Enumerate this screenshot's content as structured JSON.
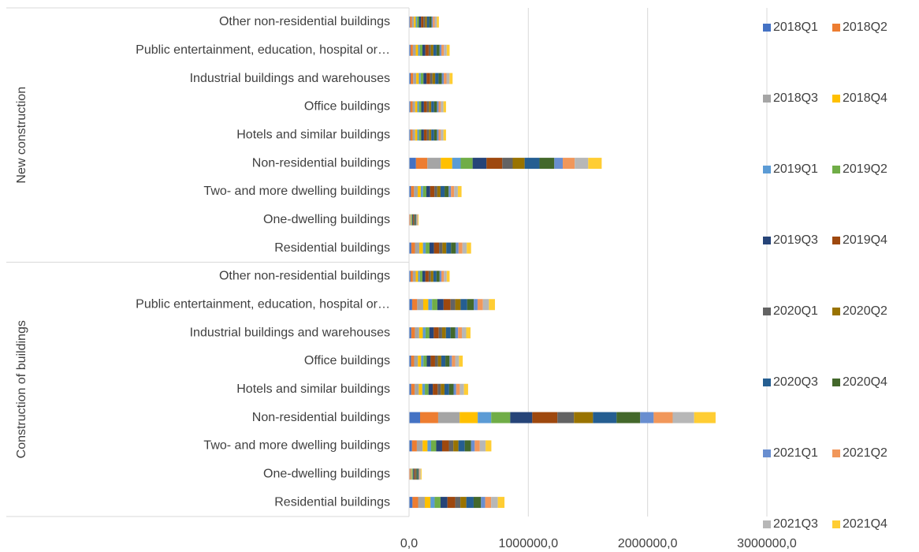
{
  "chart_data": {
    "type": "stacked_barh",
    "category_groups": [
      {
        "name": "New construction",
        "categories": [
          "Other non-residential buildings",
          "Public entertainment, education, hospital or…",
          "Industrial buildings and warehouses",
          "Office buildings",
          "Hotels and similar buildings",
          "Non-residential buildings",
          "Two- and more dwelling buildings",
          "One-dwelling buildings",
          "Residential buildings"
        ]
      },
      {
        "name": "Construction of buildings",
        "categories": [
          "Other non-residential buildings",
          "Public entertainment, education, hospital or…",
          "Industrial buildings and warehouses",
          "Office buildings",
          "Hotels and similar buildings",
          "Non-residential buildings",
          "Two- and more dwelling buildings",
          "One-dwelling buildings",
          "Residential buildings"
        ]
      }
    ],
    "series": [
      {
        "name": "2018Q1",
        "color": "#4472c4",
        "values": [
          9000,
          12240,
          13140,
          11160,
          11160,
          58140,
          15840,
          2880,
          18720,
          12240,
          25920,
          18540,
          16200,
          17820,
          92520,
          24840,
          3780,
          28800
        ]
      },
      {
        "name": "2018Q2",
        "color": "#ed7d31",
        "values": [
          14750,
          20060,
          21535,
          18290,
          18290,
          95285,
          25960,
          4720,
          30680,
          20060,
          42480,
          30385,
          26550,
          29205,
          151630,
          40710,
          6195,
          47200
        ]
      },
      {
        "name": "2018Q3",
        "color": "#a5a5a5",
        "values": [
          17500,
          23800,
          25550,
          21700,
          21700,
          113050,
          30800,
          5600,
          36400,
          23800,
          50400,
          36050,
          31500,
          34650,
          179900,
          48300,
          7350,
          56000
        ]
      },
      {
        "name": "2018Q4",
        "color": "#ffc000",
        "values": [
          14750,
          20060,
          21535,
          18290,
          18290,
          95285,
          25960,
          4720,
          30680,
          20060,
          42480,
          30385,
          26550,
          29205,
          151630,
          40710,
          6195,
          47200
        ]
      },
      {
        "name": "2019Q1",
        "color": "#5b9bd5",
        "values": [
          11000,
          14960,
          16060,
          13640,
          13640,
          71060,
          19360,
          3520,
          22880,
          14960,
          31680,
          22660,
          19800,
          21780,
          113080,
          30360,
          4620,
          35200
        ]
      },
      {
        "name": "2019Q2",
        "color": "#70ad47",
        "values": [
          15500,
          21080,
          22630,
          19220,
          19220,
          100130,
          27280,
          4960,
          32240,
          21080,
          44640,
          31930,
          27900,
          30690,
          159340,
          42780,
          6510,
          49600
        ]
      },
      {
        "name": "2019Q3",
        "color": "#264478",
        "values": [
          18000,
          24480,
          26280,
          22320,
          22320,
          116280,
          31680,
          5760,
          37440,
          24480,
          51840,
          37080,
          32400,
          35640,
          185040,
          49680,
          7560,
          57600
        ]
      },
      {
        "name": "2019Q4",
        "color": "#9e480e",
        "values": [
          20500,
          27880,
          29930,
          25420,
          25420,
          132430,
          36080,
          6560,
          42640,
          27880,
          59040,
          42230,
          36900,
          40590,
          210740,
          56580,
          8610,
          65600
        ]
      },
      {
        "name": "2020Q1",
        "color": "#636363",
        "values": [
          13500,
          18360,
          19710,
          16740,
          16740,
          87210,
          23760,
          4320,
          28080,
          18360,
          38880,
          27810,
          24300,
          26730,
          138780,
          37260,
          5670,
          43200
        ]
      },
      {
        "name": "2020Q2",
        "color": "#997300",
        "values": [
          15500,
          21080,
          22630,
          19220,
          19220,
          100130,
          27280,
          4960,
          32240,
          21080,
          44640,
          31930,
          27900,
          30690,
          159340,
          42780,
          6510,
          49600
        ]
      },
      {
        "name": "2020Q3",
        "color": "#255e91",
        "values": [
          19250,
          26180,
          28105,
          23870,
          23870,
          124355,
          33880,
          6160,
          40040,
          26180,
          55440,
          39655,
          34650,
          38115,
          197890,
          53130,
          8085,
          61600
        ]
      },
      {
        "name": "2020Q4",
        "color": "#43682b",
        "values": [
          19250,
          26180,
          28105,
          23870,
          23870,
          124355,
          33880,
          6160,
          40040,
          26180,
          55440,
          39655,
          34650,
          38115,
          197890,
          53130,
          8085,
          61600
        ]
      },
      {
        "name": "2021Q1",
        "color": "#698ed0",
        "values": [
          11000,
          14960,
          16060,
          13640,
          13640,
          71060,
          19360,
          3520,
          22880,
          14960,
          31680,
          22660,
          19800,
          21780,
          113080,
          30360,
          4620,
          35200
        ]
      },
      {
        "name": "2021Q2",
        "color": "#f1975a",
        "values": [
          15500,
          21080,
          22630,
          19220,
          19220,
          100130,
          27280,
          4960,
          32240,
          21080,
          44640,
          31930,
          27900,
          30690,
          159340,
          42780,
          6510,
          49600
        ]
      },
      {
        "name": "2021Q3",
        "color": "#b7b7b7",
        "values": [
          17500,
          23800,
          25550,
          21700,
          21700,
          113050,
          30800,
          5600,
          36400,
          23800,
          50400,
          36050,
          31500,
          34650,
          179900,
          48300,
          7350,
          56000
        ]
      },
      {
        "name": "2021Q4",
        "color": "#ffcd33",
        "values": [
          17500,
          23800,
          25550,
          21700,
          21700,
          113050,
          30800,
          5600,
          36400,
          23800,
          50400,
          36050,
          31500,
          34650,
          179900,
          48300,
          7350,
          56000
        ]
      }
    ],
    "xlim": [
      0,
      3000000
    ],
    "xticks": [
      {
        "value": 0,
        "label": "0,0"
      },
      {
        "value": 1000000,
        "label": "1000000,0"
      },
      {
        "value": 2000000,
        "label": "2000000,0"
      },
      {
        "value": 3000000,
        "label": "3000000,0"
      }
    ],
    "grid": true,
    "legend": "right"
  }
}
